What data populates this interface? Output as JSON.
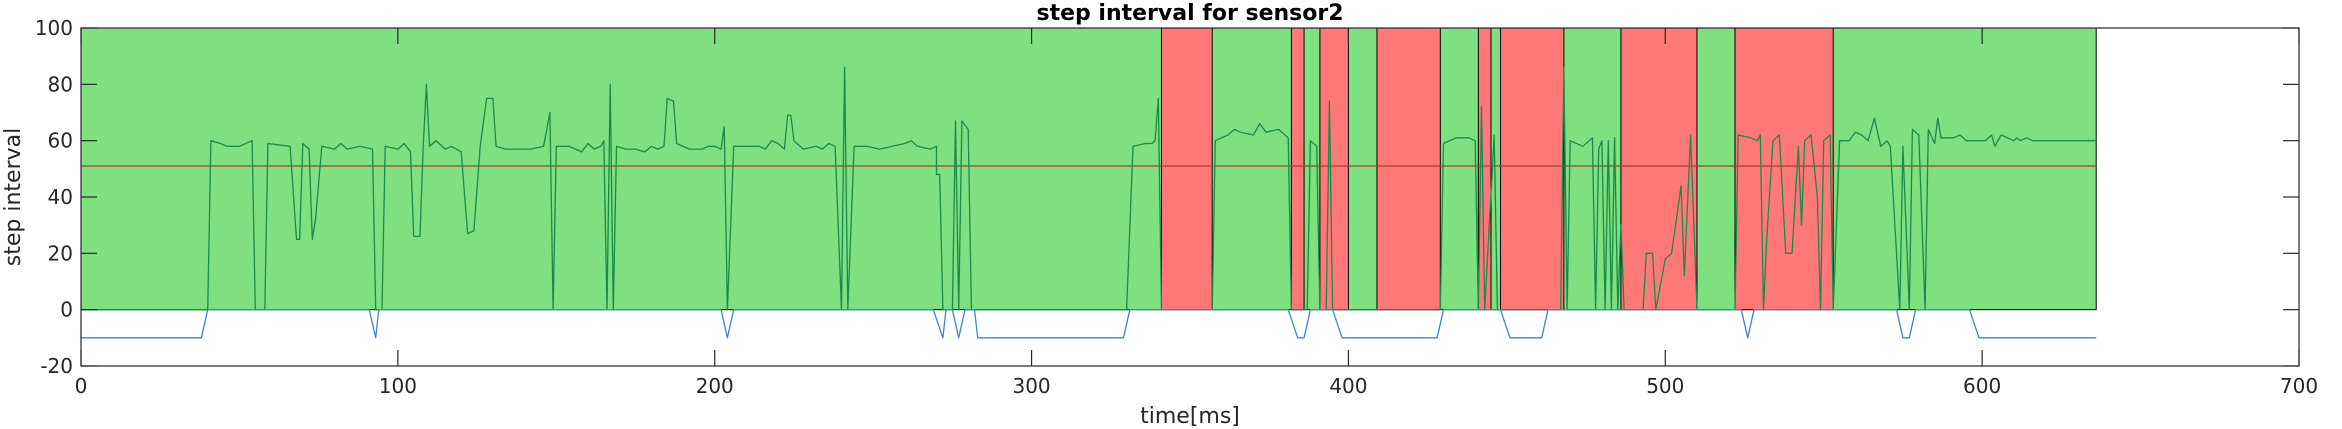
{
  "chart_data": {
    "type": "line",
    "title": "step interval for sensor2",
    "xlabel": "time[ms]",
    "ylabel": "step interval",
    "xlim": [
      0,
      700
    ],
    "ylim": [
      -20,
      100
    ],
    "xticks": [
      0,
      100,
      200,
      300,
      400,
      500,
      600,
      700
    ],
    "yticks": [
      -20,
      0,
      20,
      40,
      60,
      80,
      100
    ],
    "grid": false,
    "colors": {
      "green_region": "#7fe07f",
      "red_region": "#ff7878",
      "step_interval_line": "#1a8a4a",
      "threshold_line": "#b03a2e",
      "state_line": "#3a86d8"
    },
    "green_background": {
      "x_start": 0,
      "x_end": 636,
      "y_start": 0,
      "y_end": 100
    },
    "red_regions": [
      [
        341,
        357
      ],
      [
        382,
        386
      ],
      [
        391,
        400
      ],
      [
        409,
        429
      ],
      [
        441,
        445
      ],
      [
        448,
        468
      ],
      [
        486,
        510
      ],
      [
        522,
        553
      ]
    ],
    "threshold": 51,
    "series": [
      {
        "values": [
          [
            0,
            0
          ],
          [
            40,
            0
          ],
          [
            41,
            60
          ],
          [
            44,
            59
          ],
          [
            46,
            58
          ],
          [
            50,
            58
          ],
          [
            54,
            60
          ],
          [
            55,
            0
          ],
          [
            58,
            0
          ],
          [
            59,
            59
          ],
          [
            66,
            58
          ],
          [
            68,
            25
          ],
          [
            69,
            25
          ],
          [
            70,
            59
          ],
          [
            72,
            57
          ],
          [
            73,
            25
          ],
          [
            74,
            32
          ],
          [
            76,
            58
          ],
          [
            80,
            57
          ],
          [
            82,
            59
          ],
          [
            84,
            57
          ],
          [
            88,
            58
          ],
          [
            92,
            57
          ],
          [
            93,
            0
          ],
          [
            95,
            0
          ],
          [
            96,
            58
          ],
          [
            100,
            57
          ],
          [
            102,
            59
          ],
          [
            104,
            56
          ],
          [
            105,
            26
          ],
          [
            107,
            26
          ],
          [
            108,
            58
          ],
          [
            109,
            80
          ],
          [
            110,
            58
          ],
          [
            112,
            60
          ],
          [
            115,
            57
          ],
          [
            117,
            58
          ],
          [
            120,
            56
          ],
          [
            122,
            27
          ],
          [
            124,
            28
          ],
          [
            126,
            58
          ],
          [
            128,
            75
          ],
          [
            130,
            75
          ],
          [
            131,
            58
          ],
          [
            134,
            57
          ],
          [
            138,
            57
          ],
          [
            142,
            57
          ],
          [
            146,
            58
          ],
          [
            148,
            70
          ],
          [
            149,
            0
          ],
          [
            150,
            58
          ],
          [
            154,
            58
          ],
          [
            158,
            56
          ],
          [
            160,
            59
          ],
          [
            162,
            57
          ],
          [
            164,
            58
          ],
          [
            165,
            60
          ],
          [
            166,
            0
          ],
          [
            167,
            80
          ],
          [
            168,
            0
          ],
          [
            169,
            58
          ],
          [
            172,
            57
          ],
          [
            175,
            57
          ],
          [
            178,
            56
          ],
          [
            180,
            58
          ],
          [
            182,
            57
          ],
          [
            184,
            58
          ],
          [
            185,
            75
          ],
          [
            187,
            74
          ],
          [
            188,
            59
          ],
          [
            192,
            57
          ],
          [
            196,
            57
          ],
          [
            198,
            58
          ],
          [
            200,
            58
          ],
          [
            202,
            57
          ],
          [
            203,
            65
          ],
          [
            204,
            0
          ],
          [
            206,
            58
          ],
          [
            210,
            58
          ],
          [
            214,
            58
          ],
          [
            216,
            57
          ],
          [
            218,
            60
          ],
          [
            220,
            59
          ],
          [
            222,
            57
          ],
          [
            223,
            69
          ],
          [
            224,
            69
          ],
          [
            225,
            60
          ],
          [
            228,
            57
          ],
          [
            232,
            58
          ],
          [
            234,
            57
          ],
          [
            236,
            59
          ],
          [
            238,
            58
          ],
          [
            240,
            0
          ],
          [
            241,
            86
          ],
          [
            242,
            0
          ],
          [
            244,
            58
          ],
          [
            248,
            58
          ],
          [
            252,
            57
          ],
          [
            256,
            58
          ],
          [
            260,
            59
          ],
          [
            262,
            60
          ],
          [
            264,
            58
          ],
          [
            268,
            57
          ],
          [
            270,
            58
          ],
          [
            270,
            48
          ],
          [
            271,
            48
          ],
          [
            272,
            0
          ],
          [
            275,
            0
          ],
          [
            276,
            67
          ],
          [
            277,
            0
          ],
          [
            278,
            67
          ],
          [
            280,
            64
          ],
          [
            281,
            0
          ],
          [
            330,
            0
          ],
          [
            332,
            58
          ],
          [
            336,
            59
          ],
          [
            338,
            59
          ],
          [
            339,
            60
          ],
          [
            340,
            75
          ],
          [
            341,
            0
          ],
          [
            357,
            0
          ],
          [
            358,
            60
          ],
          [
            362,
            62
          ],
          [
            364,
            64
          ],
          [
            366,
            63
          ],
          [
            370,
            62
          ],
          [
            372,
            66
          ],
          [
            374,
            63
          ],
          [
            378,
            64
          ],
          [
            381,
            61
          ],
          [
            382,
            0
          ],
          [
            387,
            0
          ],
          [
            388,
            60
          ],
          [
            390,
            58
          ],
          [
            391,
            0
          ],
          [
            393,
            0
          ],
          [
            394,
            74
          ],
          [
            395,
            0
          ],
          [
            400,
            0
          ],
          [
            429,
            0
          ],
          [
            430,
            59
          ],
          [
            434,
            61
          ],
          [
            438,
            61
          ],
          [
            440,
            60
          ],
          [
            441,
            0
          ],
          [
            442,
            72
          ],
          [
            443,
            0
          ],
          [
            446,
            62
          ],
          [
            447,
            0
          ],
          [
            467,
            0
          ],
          [
            468,
            86
          ],
          [
            469,
            0
          ],
          [
            470,
            60
          ],
          [
            474,
            58
          ],
          [
            477,
            61
          ],
          [
            478,
            0
          ],
          [
            479,
            57
          ],
          [
            480,
            60
          ],
          [
            481,
            0
          ],
          [
            482,
            60
          ],
          [
            483,
            0
          ],
          [
            484,
            61
          ],
          [
            485,
            0
          ],
          [
            486,
            30
          ],
          [
            487,
            0
          ],
          [
            493,
            0
          ],
          [
            494,
            20
          ],
          [
            496,
            20
          ],
          [
            497,
            0
          ],
          [
            500,
            18
          ],
          [
            502,
            20
          ],
          [
            505,
            44
          ],
          [
            506,
            12
          ],
          [
            508,
            62
          ],
          [
            510,
            0
          ],
          [
            522,
            0
          ],
          [
            523,
            62
          ],
          [
            527,
            61
          ],
          [
            529,
            60
          ],
          [
            530,
            62
          ],
          [
            531,
            0
          ],
          [
            532,
            25
          ],
          [
            534,
            60
          ],
          [
            536,
            62
          ],
          [
            538,
            20
          ],
          [
            540,
            20
          ],
          [
            542,
            58
          ],
          [
            543,
            30
          ],
          [
            544,
            60
          ],
          [
            546,
            62
          ],
          [
            548,
            40
          ],
          [
            549,
            0
          ],
          [
            550,
            60
          ],
          [
            552,
            62
          ],
          [
            553,
            0
          ],
          [
            555,
            60
          ],
          [
            558,
            60
          ],
          [
            560,
            63
          ],
          [
            562,
            62
          ],
          [
            564,
            60
          ],
          [
            566,
            68
          ],
          [
            568,
            58
          ],
          [
            570,
            60
          ],
          [
            571,
            58
          ],
          [
            574,
            0
          ],
          [
            575,
            58
          ],
          [
            577,
            0
          ],
          [
            578,
            64
          ],
          [
            580,
            62
          ],
          [
            582,
            0
          ],
          [
            583,
            64
          ],
          [
            585,
            59
          ],
          [
            586,
            68
          ],
          [
            587,
            61
          ],
          [
            591,
            61
          ],
          [
            593,
            62
          ],
          [
            595,
            60
          ],
          [
            597,
            60
          ],
          [
            601,
            60
          ],
          [
            603,
            62
          ],
          [
            604,
            58
          ],
          [
            606,
            62
          ],
          [
            608,
            61
          ],
          [
            610,
            60
          ],
          [
            611,
            61
          ],
          [
            612,
            60
          ],
          [
            614,
            61
          ],
          [
            616,
            60
          ],
          [
            620,
            60
          ],
          [
            624,
            60
          ],
          [
            628,
            60
          ],
          [
            632,
            60
          ],
          [
            636,
            60
          ]
        ]
      },
      {
        "values": [
          [
            0,
            -10
          ],
          [
            38,
            -10
          ],
          [
            40,
            0
          ],
          [
            91,
            0
          ],
          [
            93,
            -10
          ],
          [
            94,
            0
          ],
          [
            202,
            0
          ],
          [
            204,
            -10
          ],
          [
            206,
            0
          ],
          [
            269,
            0
          ],
          [
            272,
            -10
          ],
          [
            273,
            0
          ],
          [
            275,
            0
          ],
          [
            277,
            -10
          ],
          [
            279,
            0
          ],
          [
            282,
            0
          ],
          [
            283,
            -10
          ],
          [
            329,
            -10
          ],
          [
            331,
            0
          ],
          [
            381,
            0
          ],
          [
            384,
            -10
          ],
          [
            386,
            -10
          ],
          [
            388,
            0
          ],
          [
            395,
            0
          ],
          [
            398,
            -10
          ],
          [
            428,
            -10
          ],
          [
            430,
            0
          ],
          [
            448,
            0
          ],
          [
            451,
            -10
          ],
          [
            461,
            -10
          ],
          [
            463,
            0
          ],
          [
            524,
            0
          ],
          [
            526,
            -10
          ],
          [
            528,
            0
          ],
          [
            573,
            0
          ],
          [
            575,
            -10
          ],
          [
            577,
            -10
          ],
          [
            579,
            0
          ],
          [
            596,
            0
          ],
          [
            599,
            -10
          ],
          [
            636,
            -10
          ]
        ]
      }
    ]
  }
}
